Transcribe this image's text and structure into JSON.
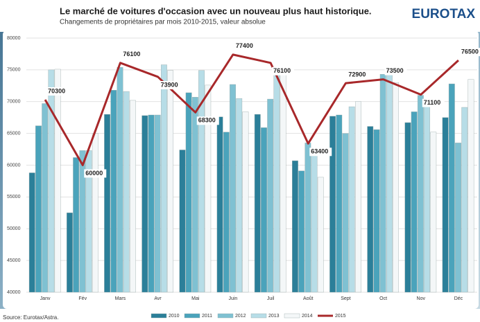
{
  "chart_data": {
    "type": "bar",
    "title": "Le marché de voitures d'occasion avec un nouveau plus haut historique.",
    "subtitle": "Changements de propriétaires par mois 2010-2015, valeur absolue",
    "brand": "EUROTAX",
    "source": "Source: Eurotax/Astra.",
    "categories": [
      "Janv",
      "Fév",
      "Mars",
      "Avr",
      "Mai",
      "Juin",
      "Juil",
      "Août",
      "Sept",
      "Oct",
      "Nov",
      "Déc"
    ],
    "ylim": [
      40000,
      80000
    ],
    "yticks": [
      40000,
      45000,
      50000,
      55000,
      60000,
      65000,
      70000,
      75000,
      80000
    ],
    "grid": true,
    "legend": "bottom",
    "series": [
      {
        "name": "2010",
        "color": "#2b7f99",
        "values": [
          58800,
          52500,
          68000,
          67800,
          62400,
          67600,
          68000,
          60700,
          67700,
          66100,
          66700,
          67500
        ]
      },
      {
        "name": "2011",
        "color": "#4aa3bb",
        "values": [
          66200,
          61200,
          71800,
          67900,
          71400,
          65200,
          65900,
          59100,
          67900,
          65600,
          68400,
          72800
        ]
      },
      {
        "name": "2012",
        "color": "#7fc1d2",
        "values": [
          69700,
          62300,
          75400,
          67900,
          70700,
          72700,
          70400,
          63500,
          65000,
          74300,
          71000,
          63500
        ]
      },
      {
        "name": "2013",
        "color": "#b7dde7",
        "values": [
          75000,
          62300,
          71600,
          75800,
          74900,
          70500,
          75300,
          62400,
          69200,
          75000,
          70000,
          69100
        ]
      },
      {
        "name": "2014",
        "color": "#f4f7f8",
        "values": [
          75100,
          65000,
          70200,
          74900,
          72600,
          68400,
          74200,
          58100,
          70000,
          73000,
          65200,
          73500
        ]
      },
      {
        "name": "2015",
        "color": "#a8282a",
        "type": "line",
        "values": [
          70300,
          60000,
          76100,
          73900,
          68300,
          77400,
          76100,
          63400,
          72900,
          73500,
          71100,
          76500
        ]
      }
    ]
  }
}
